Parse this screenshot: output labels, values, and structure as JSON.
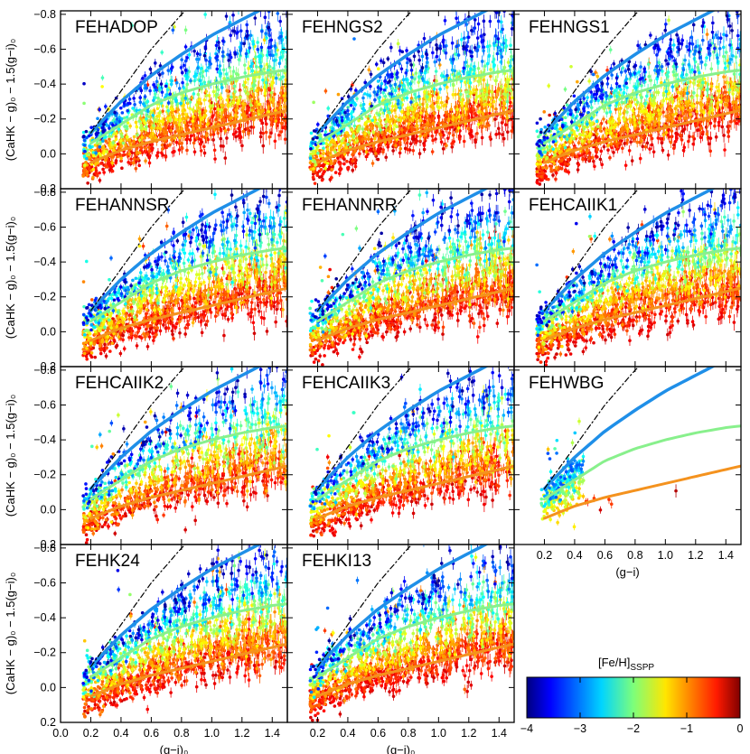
{
  "chart_data": {
    "type": "scatter",
    "layout_grid": "4 rows x 3 columns; last row has 2 panels",
    "panels": [
      {
        "title": "FEHADOP",
        "row": 0,
        "col": 0,
        "n_points": 1500
      },
      {
        "title": "FEHNGS2",
        "row": 0,
        "col": 1,
        "n_points": 1500
      },
      {
        "title": "FEHNGS1",
        "row": 0,
        "col": 2,
        "n_points": 1500
      },
      {
        "title": "FEHANNSR",
        "row": 1,
        "col": 0,
        "n_points": 1500
      },
      {
        "title": "FEHANNRR",
        "row": 1,
        "col": 1,
        "n_points": 1500
      },
      {
        "title": "FEHCAIIK1",
        "row": 1,
        "col": 2,
        "n_points": 1500
      },
      {
        "title": "FEHCAIIK2",
        "row": 2,
        "col": 0,
        "n_points": 1200
      },
      {
        "title": "FEHCAIIK3",
        "row": 2,
        "col": 1,
        "n_points": 1300
      },
      {
        "title": "FEHWBG",
        "row": 2,
        "col": 2,
        "n_points": 260
      },
      {
        "title": "FEHK24",
        "row": 3,
        "col": 0,
        "n_points": 1500
      },
      {
        "title": "FEHKI13",
        "row": 3,
        "col": 1,
        "n_points": 1500
      }
    ],
    "x_axis": {
      "label": "(g−i)₀",
      "label_unsubscripted": "(g−i)",
      "range": [
        0.0,
        1.5
      ],
      "ticks": [
        0.2,
        0.4,
        0.6,
        0.8,
        1.0,
        1.2,
        1.4
      ],
      "tick_labels_col0": [
        "0.0",
        "0.2",
        "0.4",
        "0.6",
        "0.8",
        "1.0",
        "1.2",
        "1.4"
      ],
      "tick_labels": [
        "0.2",
        "0.4",
        "0.6",
        "0.8",
        "1.0",
        "1.2",
        "1.4"
      ]
    },
    "y_axis": {
      "label": "(CaHK − g)₀ − 1.5(g−i)₀",
      "range": [
        0.2,
        -0.82
      ],
      "inverted": true,
      "ticks": [
        0.2,
        0.0,
        -0.2,
        -0.4,
        -0.6,
        -0.8
      ],
      "tick_labels": [
        "0.2",
        "0.0",
        "−0.2",
        "−0.4",
        "−0.6",
        "−0.8"
      ]
    },
    "model_lines": [
      {
        "color": "#1f8fe8",
        "style": "solid",
        "width": 3.5,
        "x": [
          0.2,
          0.4,
          0.6,
          0.8,
          1.0,
          1.2,
          1.4,
          1.5
        ],
        "y": [
          -0.12,
          -0.3,
          -0.45,
          -0.57,
          -0.68,
          -0.77,
          -0.86,
          -0.9
        ]
      },
      {
        "color": "#88f08c",
        "style": "solid",
        "width": 3,
        "x": [
          0.2,
          0.4,
          0.6,
          0.8,
          1.0,
          1.2,
          1.4,
          1.5
        ],
        "y": [
          -0.06,
          -0.17,
          -0.28,
          -0.35,
          -0.4,
          -0.44,
          -0.47,
          -0.48
        ]
      },
      {
        "color": "#f4921e",
        "style": "solid",
        "width": 3,
        "x": [
          0.2,
          0.4,
          0.6,
          0.8,
          1.0,
          1.2,
          1.4,
          1.5
        ],
        "y": [
          0.05,
          -0.02,
          -0.07,
          -0.11,
          -0.15,
          -0.19,
          -0.23,
          -0.25
        ]
      },
      {
        "color": "#000000",
        "style": "dash-dot",
        "width": 1.2,
        "x": [
          0.2,
          0.3,
          0.4,
          0.5,
          0.6,
          0.7,
          0.8,
          0.85
        ],
        "y": [
          -0.12,
          -0.24,
          -0.36,
          -0.48,
          -0.6,
          -0.7,
          -0.8,
          -0.84
        ]
      }
    ],
    "point_distribution": {
      "x_range": [
        0.15,
        1.5
      ],
      "feh_range": [
        -4,
        0
      ]
    },
    "colorbar": {
      "label_main": "[Fe/H]",
      "label_sub": "SSPP",
      "range": [
        -4,
        0
      ],
      "ticks": [
        -4,
        -3,
        -2,
        -1,
        0
      ],
      "tick_labels": [
        "−4",
        "−3",
        "−2",
        "−1",
        "0"
      ],
      "colormap": "jet"
    },
    "grid": false
  }
}
